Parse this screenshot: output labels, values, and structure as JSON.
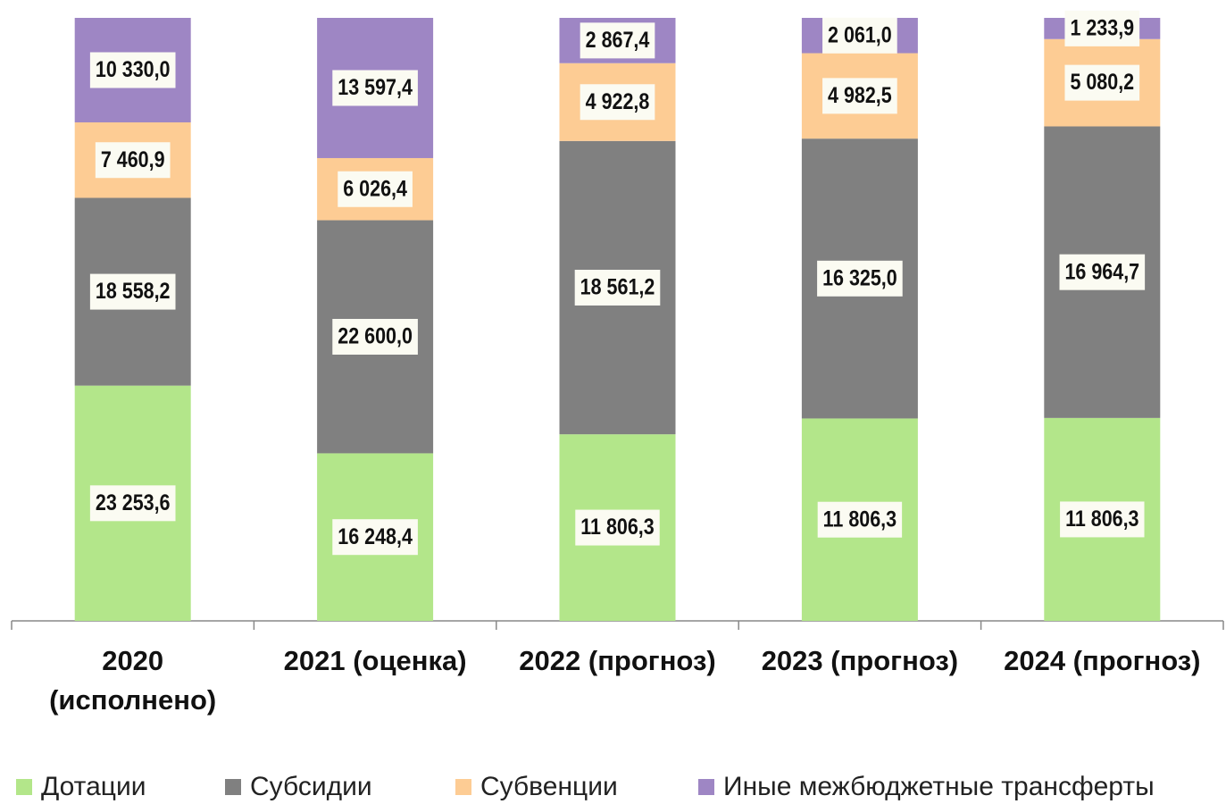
{
  "chart_data": {
    "type": "bar",
    "stacked": "percent",
    "categories": [
      "2020 (исполнено)",
      "2021 (оценка)",
      "2022 (прогноз)",
      "2023 (прогноз)",
      "2024 (прогноз)"
    ],
    "series": [
      {
        "name": "Дотации",
        "color": "#b3e68a",
        "values": [
          23253.6,
          16248.4,
          11806.3,
          11806.3,
          11806.3
        ],
        "value_labels": [
          "23 253,6",
          "16 248,4",
          "11 806,3",
          "11 806,3",
          "11 806,3"
        ]
      },
      {
        "name": "Субсидии",
        "color": "#808080",
        "values": [
          18558.2,
          22600.0,
          18561.2,
          16325.0,
          16964.7
        ],
        "value_labels": [
          "18 558,2",
          "22 600,0",
          "18 561,2",
          "16 325,0",
          "16 964,7"
        ]
      },
      {
        "name": "Субвенции",
        "color": "#fdcc94",
        "values": [
          7460.9,
          6026.4,
          4922.8,
          4982.5,
          5080.2
        ],
        "value_labels": [
          "7 460,9",
          "6 026,4",
          "4 922,8",
          "4 982,5",
          "5 080,2"
        ]
      },
      {
        "name": "Иные межбюджетные трансферты",
        "color": "#9e86c4",
        "values": [
          10330.0,
          13597.4,
          2867.4,
          2061.0,
          1233.9
        ],
        "value_labels": [
          "10 330,0",
          "13 597,4",
          "2 867,4",
          "2 061,0",
          "1 233,9"
        ]
      }
    ],
    "legend": "bottom"
  }
}
